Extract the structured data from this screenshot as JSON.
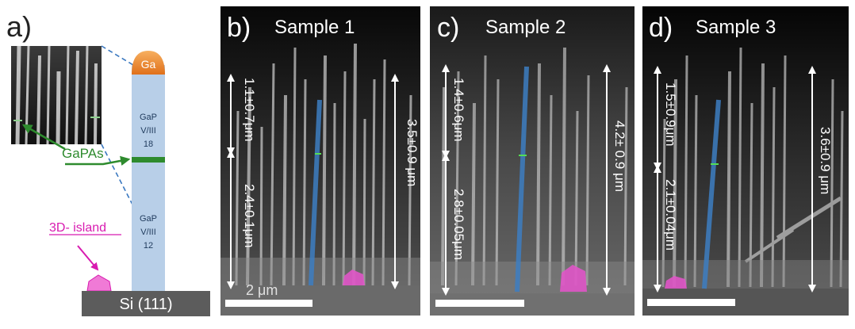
{
  "panel_a": {
    "letter": "a)",
    "droplet": "Ga",
    "upper_segment": {
      "material": "GaP",
      "ratio_label": "V/III",
      "ratio_value": "18"
    },
    "marker_label": "GaPAs",
    "lower_segment": {
      "material": "GaP",
      "ratio_label": "V/III",
      "ratio_value": "12"
    },
    "island_label": "3D- island",
    "substrate": "Si (111)"
  },
  "panels": [
    {
      "letter": "b)",
      "title": "Sample 1",
      "top_measure": "1.1±0.7μm",
      "bottom_measure": "2.4±0.1μm",
      "total_measure": "3.5±0.9 μm",
      "scale_bar": "2 μm"
    },
    {
      "letter": "c)",
      "title": "Sample 2",
      "top_measure": "1.4±0.6μm",
      "bottom_measure": "2.8±0.05μm",
      "total_measure": "4.2± 0.9 μm"
    },
    {
      "letter": "d)",
      "title": "Sample 3",
      "top_measure": "1.5±0.9μm",
      "bottom_measure": "2.1±0.04μm",
      "total_measure": "3.6±0.9 μm"
    }
  ],
  "colors": {
    "nanowire": "#b8cfe8",
    "droplet": "#f08a2c",
    "marker": "#2e8b2e",
    "island": "#e055c8",
    "substrate": "#5c5c5c",
    "highlight_wire": "#3d7ec2"
  }
}
